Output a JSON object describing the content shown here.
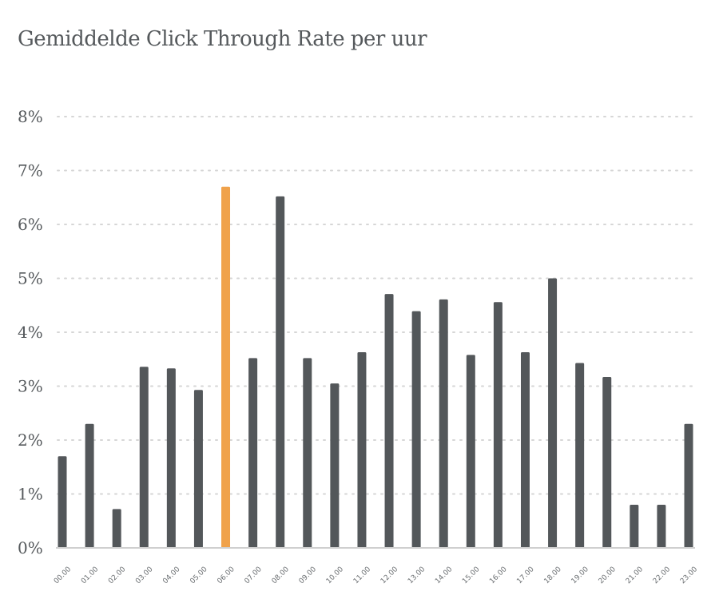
{
  "chart_data": {
    "type": "bar",
    "title": "Gemiddelde Click Through Rate per uur",
    "xlabel": "",
    "ylabel": "",
    "ylim": [
      0,
      8
    ],
    "ytick_values": [
      0,
      1,
      2,
      3,
      4,
      5,
      6,
      7,
      8
    ],
    "ytick_labels": [
      "0%",
      "1%",
      "2%",
      "3%",
      "4%",
      "5%",
      "6%",
      "7%",
      "8%"
    ],
    "grid": "horizontal dotted",
    "categories": [
      "00.00",
      "01.00",
      "02.00",
      "03.00",
      "04.00",
      "05.00",
      "06.00",
      "07.00",
      "08.00",
      "09.00",
      "10.00",
      "11.00",
      "12.00",
      "13.00",
      "14.00",
      "15.00",
      "16.00",
      "17.00",
      "18.00",
      "19.00",
      "20.00",
      "21.00",
      "22.00",
      "23.00"
    ],
    "values": [
      1.7,
      2.3,
      0.72,
      3.36,
      3.33,
      2.93,
      6.7,
      3.52,
      6.52,
      3.52,
      3.05,
      3.63,
      4.71,
      4.39,
      4.61,
      3.58,
      4.56,
      3.63,
      5.0,
      3.43,
      3.17,
      0.8,
      0.8,
      2.3
    ],
    "highlight_index": 6,
    "colors": {
      "bar": "#53575a",
      "highlight": "#f0a24b",
      "grid": "#d6d6d6",
      "axis": "#cfcfcf"
    }
  }
}
